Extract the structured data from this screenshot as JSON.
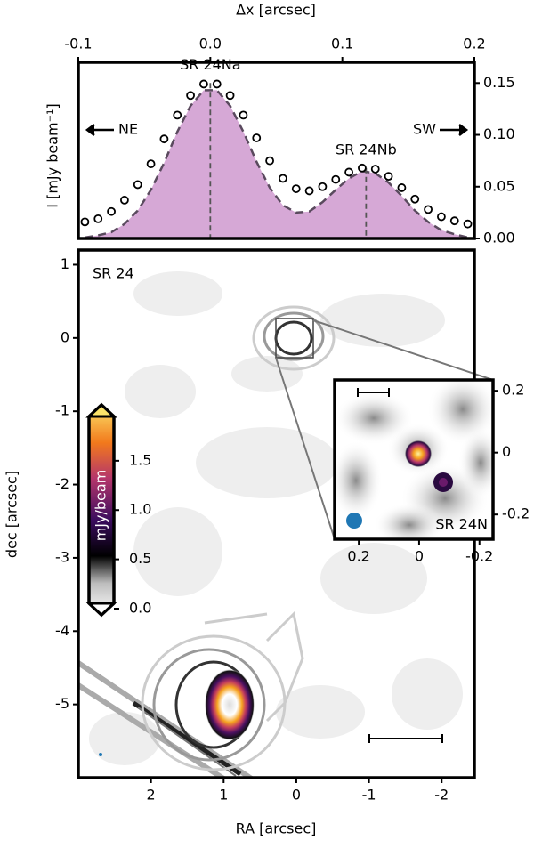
{
  "chart_data": [
    {
      "type": "line",
      "xlabel": "Δx [arcsec]",
      "ylabel": "I [mJy beam⁻¹]",
      "xaxis": "top",
      "yaxis": "right",
      "xlim": [
        -0.1,
        0.2
      ],
      "xticks": [
        -0.1,
        {
          "value": 0,
          "label": "0.0"
        },
        0.1,
        0.2
      ],
      "ylim": [
        0,
        0.17
      ],
      "yticks": [
        {
          "value": 0,
          "label": "0.00"
        },
        0.05,
        {
          "value": 0.1,
          "label": "0.10"
        },
        0.15
      ],
      "x": [
        -0.095,
        -0.085,
        -0.075,
        -0.065,
        -0.055,
        -0.045,
        -0.035,
        -0.025,
        -0.015,
        -0.005,
        0.005,
        0.015,
        0.025,
        0.035,
        0.045,
        0.055,
        0.065,
        0.075,
        0.085,
        0.095,
        0.105,
        0.115,
        0.125,
        0.135,
        0.145,
        0.155,
        0.165,
        0.175,
        0.185,
        0.195
      ],
      "series": [
        {
          "style": "markers",
          "color": "#000000",
          "values": [
            0.016,
            0.019,
            0.026,
            0.037,
            0.052,
            0.072,
            0.096,
            0.119,
            0.138,
            0.149,
            0.149,
            0.138,
            0.119,
            0.097,
            0.075,
            0.058,
            0.048,
            0.046,
            0.05,
            0.057,
            0.064,
            0.068,
            0.067,
            0.06,
            0.049,
            0.038,
            0.028,
            0.021,
            0.017,
            0.014
          ]
        },
        {
          "style": "dashed-fill",
          "color": "#5a4a5e",
          "fill": "#d6a8d6",
          "values": [
            0.001,
            0.003,
            0.006,
            0.014,
            0.027,
            0.047,
            0.073,
            0.103,
            0.128,
            0.143,
            0.143,
            0.128,
            0.103,
            0.074,
            0.049,
            0.032,
            0.025,
            0.026,
            0.035,
            0.047,
            0.058,
            0.065,
            0.063,
            0.054,
            0.041,
            0.027,
            0.016,
            0.008,
            0.004,
            0.001
          ]
        }
      ],
      "peaks": [
        {
          "label": "SR 24Na",
          "x": 0,
          "y": 0.15
        },
        {
          "label": "SR 24Nb",
          "x": 0.118,
          "y": 0.068
        }
      ],
      "left_label": "NE",
      "right_label": "SW"
    },
    {
      "type": "image",
      "label": "SR 24",
      "xlabel": "RA [arcsec]",
      "ylabel": "dec [arcsec]",
      "xlim": [
        3.0,
        -2.45
      ],
      "xticks": [
        2,
        1,
        0,
        -1,
        -2
      ],
      "ylim": [
        -6.0,
        1.2
      ],
      "yticks": [
        1,
        0,
        -1,
        -2,
        -3,
        -4,
        -5
      ],
      "colorbar": {
        "label": "mJy/beam",
        "lim": [
          0,
          1.95
        ],
        "ticks": [
          {
            "value": 0,
            "label": "0.0"
          },
          0.5,
          {
            "value": 1,
            "label": "1.0"
          },
          1.5
        ]
      }
    },
    {
      "type": "image",
      "label": "SR 24N",
      "xlim": [
        0.28,
        -0.245
      ],
      "xticks": [
        0.2,
        0,
        -0.2
      ],
      "ylim": [
        -0.28,
        0.235
      ],
      "yticks": [
        0.2,
        0,
        -0.2
      ]
    }
  ]
}
